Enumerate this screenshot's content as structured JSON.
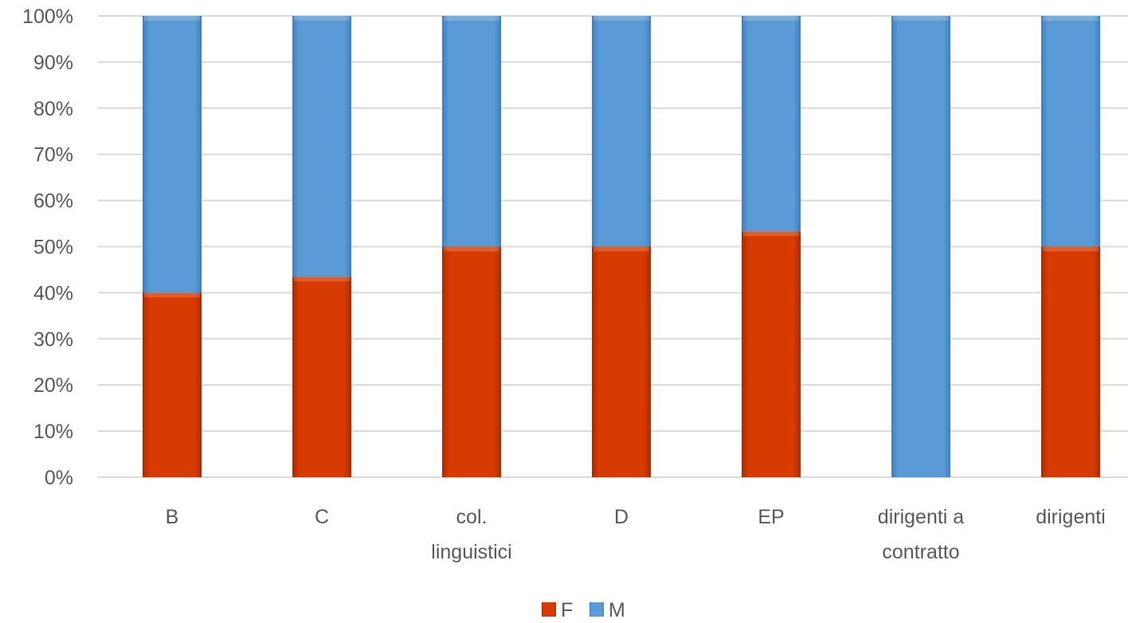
{
  "chart_data": {
    "type": "bar",
    "stacked": true,
    "percent": true,
    "categories": [
      "B",
      "C",
      "col. linguistici",
      "D",
      "EP",
      "dirigenti a contratto",
      "dirigenti"
    ],
    "series": [
      {
        "name": "F",
        "color": "#d83b01",
        "values": [
          40,
          43.5,
          50,
          50,
          53.3,
          0,
          50
        ]
      },
      {
        "name": "M",
        "color": "#5b9bd5",
        "values": [
          60,
          56.5,
          50,
          50,
          46.7,
          100,
          50
        ]
      }
    ],
    "ylim": [
      0,
      100
    ],
    "yticks": [
      "0%",
      "10%",
      "20%",
      "30%",
      "40%",
      "50%",
      "60%",
      "70%",
      "80%",
      "90%",
      "100%"
    ],
    "grid": true,
    "legend": "bottom"
  }
}
